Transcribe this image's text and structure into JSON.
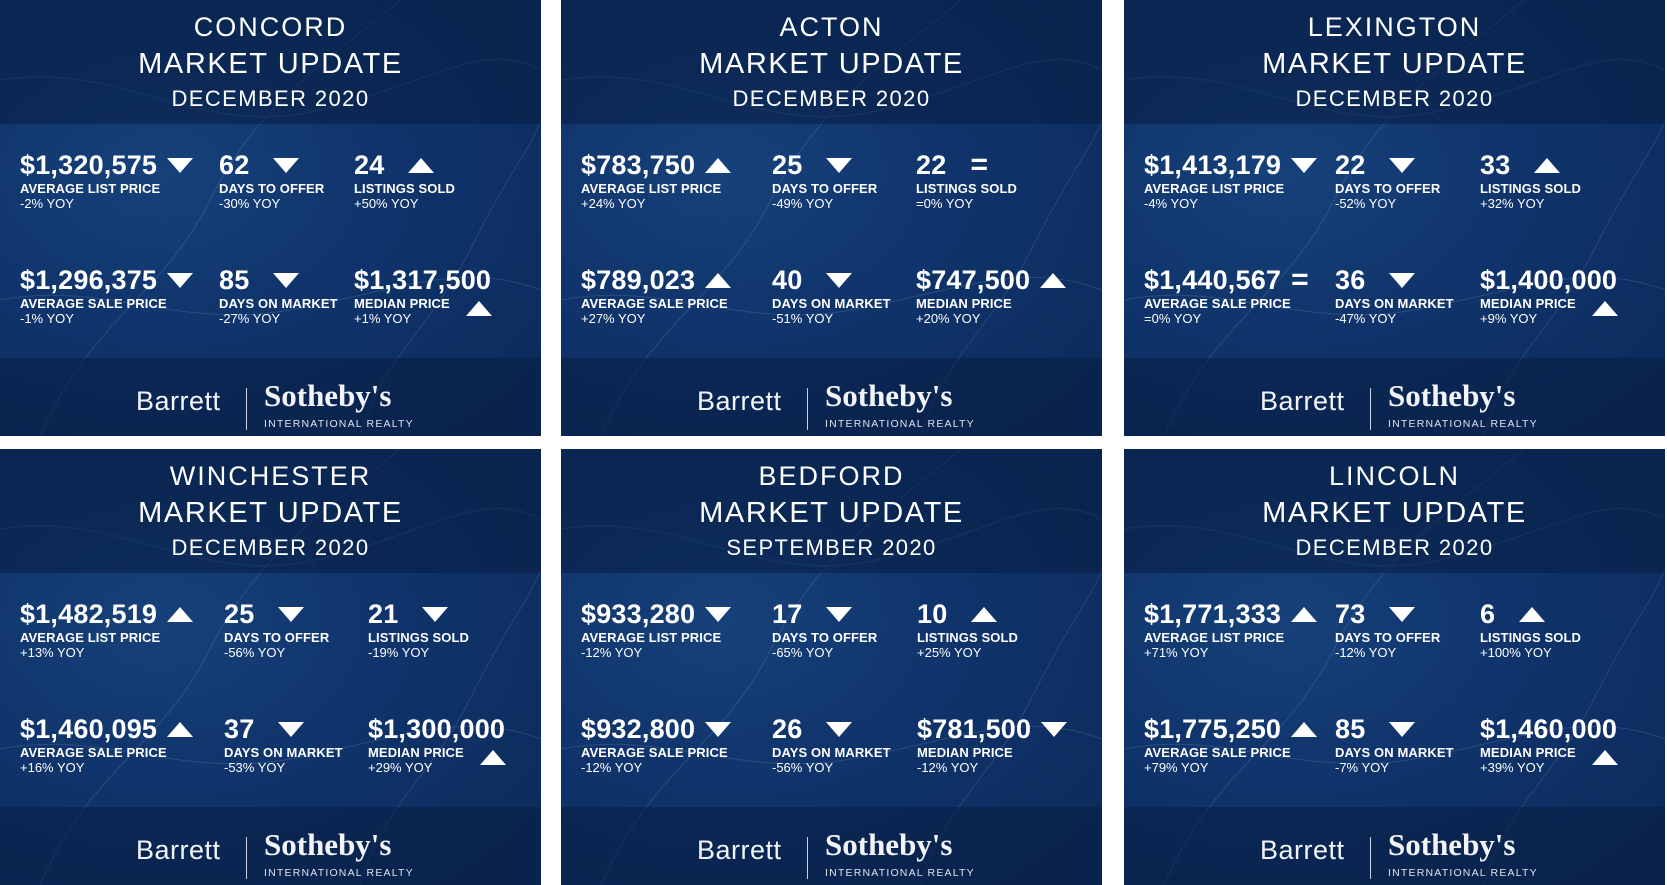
{
  "footer": {
    "brand": "Barrett",
    "partner": "Sotheby's",
    "tagline": "INTERNATIONAL REALTY"
  },
  "cards": [
    {
      "town": "CONCORD",
      "headline": "MARKET UPDATE",
      "date": "DECEMBER 2020",
      "stats": {
        "avg_list": {
          "value": "$1,320,575",
          "label": "AVERAGE LIST PRICE",
          "change": "-2% YOY",
          "trend": "down"
        },
        "days_offer": {
          "value": "62",
          "label": "DAYS TO OFFER",
          "change": "-30% YOY",
          "trend": "down"
        },
        "listings_sold": {
          "value": "24",
          "label": "LISTINGS SOLD",
          "change": "+50% YOY",
          "trend": "up"
        },
        "avg_sale": {
          "value": "$1,296,375",
          "label": "AVERAGE SALE PRICE",
          "change": "-1% YOY",
          "trend": "down"
        },
        "days_market": {
          "value": "85",
          "label": "DAYS ON MARKET",
          "change": "-27% YOY",
          "trend": "down"
        },
        "median": {
          "value": "$1,317,500",
          "label": "MEDIAN PRICE",
          "change": "+1% YOY",
          "trend": "up"
        }
      }
    },
    {
      "town": "ACTON",
      "headline": "MARKET UPDATE",
      "date": "DECEMBER 2020",
      "stats": {
        "avg_list": {
          "value": "$783,750",
          "label": "AVERAGE LIST PRICE",
          "change": "+24% YOY",
          "trend": "up"
        },
        "days_offer": {
          "value": "25",
          "label": "DAYS TO OFFER",
          "change": "-49% YOY",
          "trend": "down"
        },
        "listings_sold": {
          "value": "22",
          "label": "LISTINGS SOLD",
          "change": "=0% YOY",
          "trend": "equal"
        },
        "avg_sale": {
          "value": "$789,023",
          "label": "AVERAGE SALE PRICE",
          "change": "+27% YOY",
          "trend": "up"
        },
        "days_market": {
          "value": "40",
          "label": "DAYS ON MARKET",
          "change": "-51% YOY",
          "trend": "down"
        },
        "median": {
          "value": "$747,500",
          "label": "MEDIAN PRICE",
          "change": "+20% YOY",
          "trend": "up"
        }
      }
    },
    {
      "town": "LEXINGTON",
      "headline": "MARKET UPDATE",
      "date": "DECEMBER 2020",
      "stats": {
        "avg_list": {
          "value": "$1,413,179",
          "label": "AVERAGE LIST PRICE",
          "change": "-4% YOY",
          "trend": "down"
        },
        "days_offer": {
          "value": "22",
          "label": "DAYS TO OFFER",
          "change": "-52% YOY",
          "trend": "down"
        },
        "listings_sold": {
          "value": "33",
          "label": "LISTINGS SOLD",
          "change": "+32% YOY",
          "trend": "up"
        },
        "avg_sale": {
          "value": "$1,440,567",
          "label": "AVERAGE SALE PRICE",
          "change": "=0% YOY",
          "trend": "equal"
        },
        "days_market": {
          "value": "36",
          "label": "DAYS ON MARKET",
          "change": "-47% YOY",
          "trend": "down"
        },
        "median": {
          "value": "$1,400,000",
          "label": "MEDIAN PRICE",
          "change": "+9% YOY",
          "trend": "up"
        }
      }
    },
    {
      "town": "WINCHESTER",
      "headline": "MARKET UPDATE",
      "date": "DECEMBER 2020",
      "stats": {
        "avg_list": {
          "value": "$1,482,519",
          "label": "AVERAGE LIST PRICE",
          "change": "+13%  YOY",
          "trend": "up"
        },
        "days_offer": {
          "value": "25",
          "label": "DAYS TO OFFER",
          "change": "-56% YOY",
          "trend": "down"
        },
        "listings_sold": {
          "value": "21",
          "label": "LISTINGS SOLD",
          "change": "-19% YOY",
          "trend": "down"
        },
        "avg_sale": {
          "value": "$1,460,095",
          "label": "AVERAGE SALE PRICE",
          "change": "+16% YOY",
          "trend": "up"
        },
        "days_market": {
          "value": "37",
          "label": "DAYS ON MARKET",
          "change": "-53% YOY",
          "trend": "down"
        },
        "median": {
          "value": "$1,300,000",
          "label": "MEDIAN PRICE",
          "change": "+29% YOY",
          "trend": "up"
        }
      }
    },
    {
      "town": "BEDFORD",
      "headline": "MARKET UPDATE",
      "date": "SEPTEMBER 2020",
      "stats": {
        "avg_list": {
          "value": "$933,280",
          "label": "AVERAGE LIST PRICE",
          "change": "-12% YOY",
          "trend": "down"
        },
        "days_offer": {
          "value": "17",
          "label": "DAYS TO OFFER",
          "change": "-65% YOY",
          "trend": "down"
        },
        "listings_sold": {
          "value": "10",
          "label": "LISTINGS SOLD",
          "change": "+25% YOY",
          "trend": "up"
        },
        "avg_sale": {
          "value": "$932,800",
          "label": "AVERAGE SALE PRICE",
          "change": "-12% YOY",
          "trend": "down"
        },
        "days_market": {
          "value": "26",
          "label": "DAYS ON MARKET",
          "change": "-56% YOY",
          "trend": "down"
        },
        "median": {
          "value": "$781,500",
          "label": "MEDIAN PRICE",
          "change": "-12% YOY",
          "trend": "down"
        }
      }
    },
    {
      "town": "LINCOLN",
      "headline": "MARKET UPDATE",
      "date": "DECEMBER 2020",
      "stats": {
        "avg_list": {
          "value": "$1,771,333",
          "label": "AVERAGE LIST PRICE",
          "change": "+71% YOY",
          "trend": "up"
        },
        "days_offer": {
          "value": "73",
          "label": "DAYS TO OFFER",
          "change": "-12% YOY",
          "trend": "down"
        },
        "listings_sold": {
          "value": "6",
          "label": "LISTINGS SOLD",
          "change": "+100% YOY",
          "trend": "up"
        },
        "avg_sale": {
          "value": "$1,775,250",
          "label": "AVERAGE SALE PRICE",
          "change": "+79% YOY",
          "trend": "up"
        },
        "days_market": {
          "value": "85",
          "label": "DAYS ON MARKET",
          "change": "-7% YOY",
          "trend": "down"
        },
        "median": {
          "value": "$1,460,000",
          "label": "MEDIAN PRICE",
          "change": "+39% YOY",
          "trend": "up"
        }
      }
    }
  ]
}
